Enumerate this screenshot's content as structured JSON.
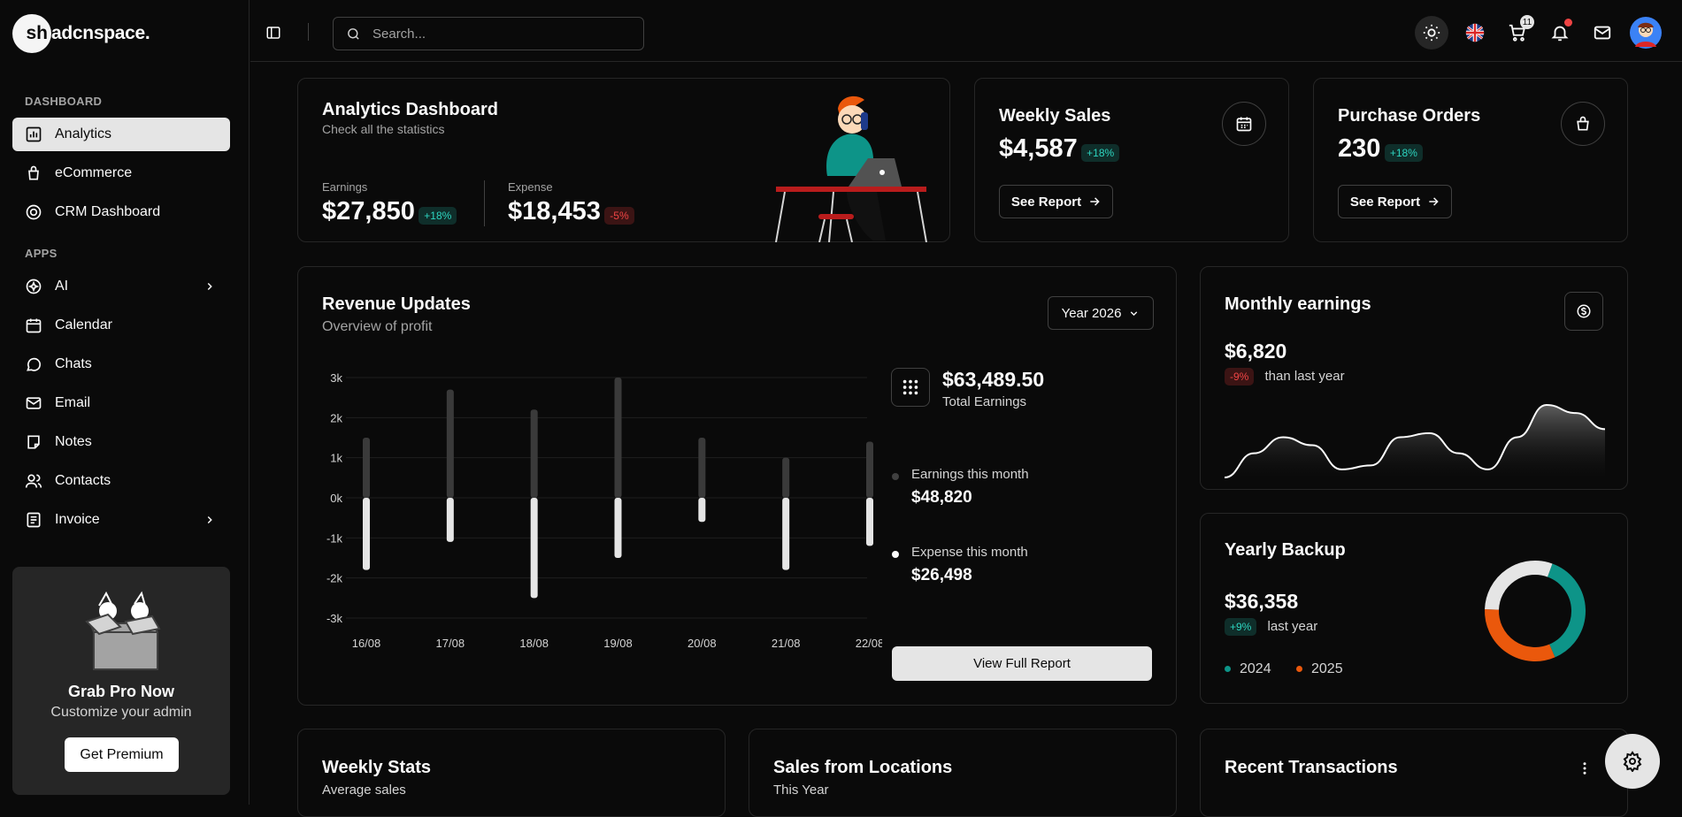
{
  "brand": {
    "mark": "sh",
    "name": "adcnspace."
  },
  "sidebar": {
    "section_dashboard": "DASHBOARD",
    "section_apps": "APPS",
    "items": [
      {
        "label": "Analytics"
      },
      {
        "label": "eCommerce"
      },
      {
        "label": "CRM Dashboard"
      },
      {
        "label": "AI"
      },
      {
        "label": "Calendar"
      },
      {
        "label": "Chats"
      },
      {
        "label": "Email"
      },
      {
        "label": "Notes"
      },
      {
        "label": "Contacts"
      },
      {
        "label": "Invoice"
      }
    ],
    "promo": {
      "title": "Grab Pro Now",
      "subtitle": "Customize your admin",
      "button": "Get Premium"
    }
  },
  "topbar": {
    "search_placeholder": "Search...",
    "cart_count": "11"
  },
  "analytics": {
    "title": "Analytics Dashboard",
    "subtitle": "Check all the statistics",
    "earnings_label": "Earnings",
    "earnings_value": "$27,850",
    "earnings_badge": "+18%",
    "expense_label": "Expense",
    "expense_value": "$18,453",
    "expense_badge": "-5%"
  },
  "weekly_sales": {
    "title": "Weekly Sales",
    "value": "$4,587",
    "badge": "+18%",
    "button": "See Report"
  },
  "purchase_orders": {
    "title": "Purchase Orders",
    "value": "230",
    "badge": "+18%",
    "button": "See Report"
  },
  "revenue": {
    "title": "Revenue Updates",
    "subtitle": "Overview of profit",
    "year_select": "Year 2026",
    "total_value": "$63,489.50",
    "total_label": "Total Earnings",
    "earn_month_label": "Earnings this month",
    "earn_month_value": "$48,820",
    "exp_month_label": "Expense this month",
    "exp_month_value": "$26,498",
    "button": "View Full Report"
  },
  "monthly": {
    "title": "Monthly earnings",
    "value": "$6,820",
    "badge": "-9%",
    "note": "than last year"
  },
  "yearly": {
    "title": "Yearly Backup",
    "value": "$36,358",
    "badge": "+9%",
    "note": "last year",
    "legend": [
      "2024",
      "2025"
    ]
  },
  "bottom": {
    "weekly_title": "Weekly Stats",
    "weekly_sub": "Average sales",
    "locations_title": "Sales from Locations",
    "locations_sub": "This Year",
    "transactions_title": "Recent Transactions"
  },
  "colors": {
    "teal": "#0d9488",
    "orange": "#ea580c",
    "light": "#e5e5e5"
  },
  "chart_data": [
    {
      "type": "bar",
      "categories": [
        "16/08",
        "17/08",
        "18/08",
        "19/08",
        "20/08",
        "21/08",
        "22/08"
      ],
      "series": [
        {
          "name": "Earnings",
          "values": [
            1.5,
            2.7,
            2.2,
            3.0,
            1.5,
            1.0,
            1.4
          ]
        },
        {
          "name": "Expense",
          "values": [
            -1.8,
            -1.1,
            -2.5,
            -1.5,
            -0.6,
            -1.8,
            -1.2
          ]
        }
      ],
      "yticks": [
        "3k",
        "2k",
        "1k",
        "0k",
        "-1k",
        "-2k",
        "-3k"
      ],
      "ylim": [
        -3,
        3
      ]
    },
    {
      "type": "area",
      "values": [
        0,
        6,
        10,
        8,
        2,
        3,
        10,
        11,
        6,
        2,
        10,
        18,
        16,
        12
      ]
    },
    {
      "type": "pie",
      "categories": [
        "2024",
        "2025",
        "other"
      ],
      "values": [
        38,
        32,
        30
      ]
    }
  ]
}
